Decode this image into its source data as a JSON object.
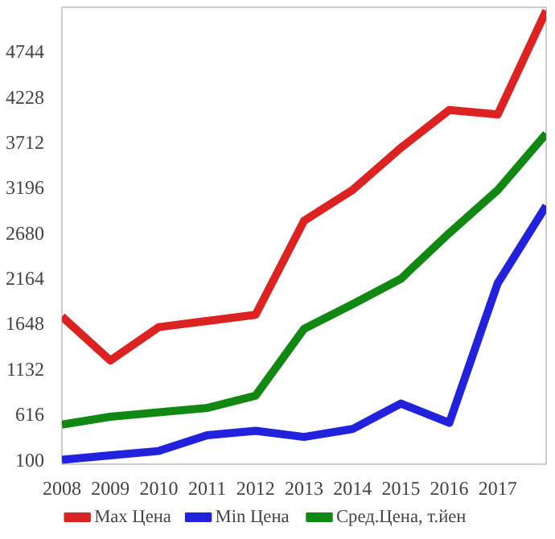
{
  "chart_data": {
    "type": "line",
    "x": [
      2008,
      2009,
      2010,
      2011,
      2012,
      2013,
      2014,
      2015,
      2016,
      2017,
      2018
    ],
    "xlim": [
      2008,
      2018
    ],
    "xticks": [
      2008,
      2009,
      2010,
      2011,
      2012,
      2013,
      2014,
      2015,
      2016,
      2017
    ],
    "ylim": [
      50,
      5250
    ],
    "yticks": [
      100,
      616,
      1132,
      1648,
      2164,
      2680,
      3196,
      3712,
      4228,
      4744
    ],
    "grid": false,
    "legend": "bottom",
    "marker": "none",
    "line_style": "solid",
    "series": [
      {
        "name": "Max Цена",
        "color": "#dd2222",
        "values": [
          1730,
          1230,
          1610,
          1680,
          1750,
          2820,
          3170,
          3650,
          4080,
          4030,
          5210
        ]
      },
      {
        "name": "Min Цена",
        "color": "#2222dd",
        "values": [
          100,
          150,
          200,
          380,
          430,
          360,
          450,
          740,
          520,
          2110,
          2990
        ]
      },
      {
        "name": "Сред.Цена, т.йен",
        "color": "#118811",
        "values": [
          500,
          590,
          640,
          690,
          830,
          1590,
          1870,
          2160,
          2680,
          3170,
          3810
        ]
      }
    ]
  }
}
